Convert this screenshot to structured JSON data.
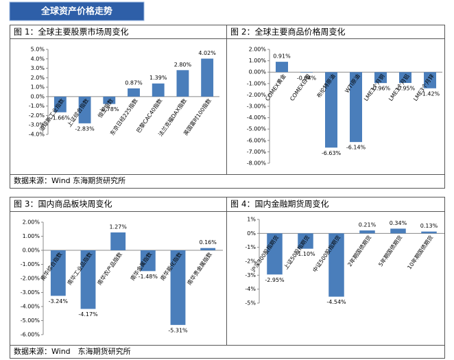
{
  "header": {
    "title": "全球资产价格走势"
  },
  "sources": [
    "数据来源：Wind 东海期货研究所",
    "数据来源：Wind　东海期货研究所"
  ],
  "chart_data": [
    {
      "type": "bar",
      "title": "图 1：全球主要股票市场周变化",
      "color": "#4a7ebb",
      "categories": [
        "道琼斯工业指数",
        "上证综合指数",
        "恒生指数",
        "东京日经225指数",
        "巴黎CAC40指数",
        "法兰克福DAX指数",
        "英国富时100指数"
      ],
      "values": [
        -1.66,
        -2.83,
        -0.78,
        0.87,
        1.39,
        2.8,
        4.02
      ],
      "value_labels": [
        "-1.66%",
        "-2.83%",
        "-0.78%",
        "0.87%",
        "1.39%",
        "2.80%",
        "4.02%"
      ],
      "ylim": [
        -4,
        5
      ],
      "yticks": [
        {
          "value": 5,
          "label": "5.0%"
        },
        {
          "value": 4,
          "label": "4.0%"
        },
        {
          "value": 3,
          "label": "3.0%"
        },
        {
          "value": 2,
          "label": "2.0%"
        },
        {
          "value": 1,
          "label": "1.0%"
        },
        {
          "value": 0,
          "label": "0.0%"
        },
        {
          "value": -1,
          "label": "-1.0%"
        },
        {
          "value": -2,
          "label": "-2.0%"
        },
        {
          "value": -3,
          "label": "-3.0%"
        },
        {
          "value": -4,
          "label": "-4.0%"
        }
      ]
    },
    {
      "type": "bar",
      "title": "图 2：全球主要商品价格周变化",
      "color": "#4a7ebb",
      "categories": [
        "COMEX黄金",
        "COMEX白银",
        "布伦特原油",
        "WTI原油",
        "LME3个月铜",
        "LME3个月铝",
        "LME3个月锌"
      ],
      "values": [
        0.91,
        -0.04,
        -6.63,
        -6.14,
        -0.96,
        -0.95,
        -1.42
      ],
      "value_labels": [
        "0.91%",
        "-0.04%",
        "-6.63%",
        "-6.14%",
        "-0.96%",
        "-0.95%",
        "-1.42%"
      ],
      "ylim": [
        -8,
        2
      ],
      "yticks": [
        {
          "value": 2,
          "label": "2.00%"
        },
        {
          "value": 1,
          "label": "1.00%"
        },
        {
          "value": 0,
          "label": "0.00%"
        },
        {
          "value": -1,
          "label": "-1.00%"
        },
        {
          "value": -2,
          "label": "-2.00%"
        },
        {
          "value": -3,
          "label": "-3.00%"
        },
        {
          "value": -4,
          "label": "-4.00%"
        },
        {
          "value": -5,
          "label": "-5.00%"
        },
        {
          "value": -6,
          "label": "-6.00%"
        },
        {
          "value": -7,
          "label": "-7.00%"
        },
        {
          "value": -8,
          "label": "-8.00%"
        }
      ]
    },
    {
      "type": "bar",
      "title": "图 3：国内商品板块周变化",
      "color": "#4a7ebb",
      "categories": [
        "南华综合指数",
        "南华工业品指数",
        "南华农产品指数",
        "南华金属指数",
        "南华能化指数",
        "南华贵金属指数"
      ],
      "values": [
        -3.24,
        -4.17,
        1.27,
        -1.48,
        -5.31,
        0.16
      ],
      "value_labels": [
        "-3.24%",
        "-4.17%",
        "1.27%",
        "-1.48%",
        "-5.31%",
        "0.16%"
      ],
      "ylim": [
        -6,
        2
      ],
      "yticks": [
        {
          "value": 2,
          "label": "2.00%"
        },
        {
          "value": 1,
          "label": "1.00%"
        },
        {
          "value": 0,
          "label": "0.00%"
        },
        {
          "value": -1,
          "label": "-1.00%"
        },
        {
          "value": -2,
          "label": "-2.00%"
        },
        {
          "value": -3,
          "label": "-3.00%"
        },
        {
          "value": -4,
          "label": "-4.00%"
        },
        {
          "value": -5,
          "label": "-5.00%"
        },
        {
          "value": -6,
          "label": "-6.00%"
        }
      ]
    },
    {
      "type": "bar",
      "title": "图 4：国内金融期货周变化",
      "color": "#4a7ebb",
      "categories": [
        "沪深300股指期货",
        "上证50股指期货",
        "中证500股指期货",
        "2年期国债期货",
        "5年期国债期货",
        "10年期国债期货"
      ],
      "values": [
        -2.95,
        -1.1,
        -4.54,
        0.21,
        0.34,
        0.13
      ],
      "value_labels": [
        "-2.95%",
        "-1.10%",
        "-4.54%",
        "0.21%",
        "0.34%",
        "0.13%"
      ],
      "ylim": [
        -5,
        1
      ],
      "yticks": [
        {
          "value": 1,
          "label": "1%"
        },
        {
          "value": 0,
          "label": "0%"
        },
        {
          "value": -1,
          "label": "-1%"
        },
        {
          "value": -2,
          "label": "-2%"
        },
        {
          "value": -3,
          "label": "-3%"
        },
        {
          "value": -4,
          "label": "-4%"
        },
        {
          "value": -5,
          "label": "-5%"
        }
      ]
    }
  ]
}
